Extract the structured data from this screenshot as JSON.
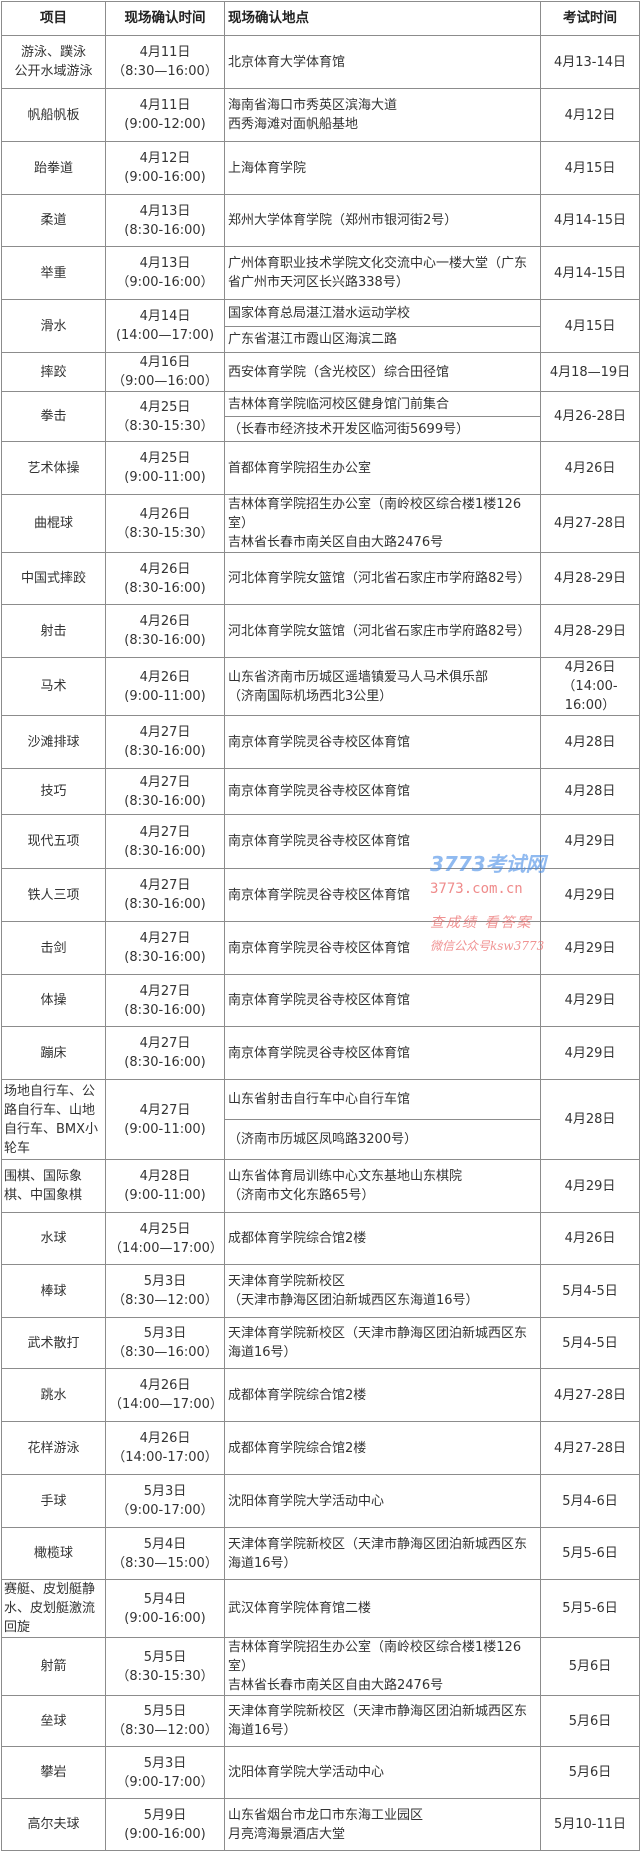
{
  "header": {
    "project": "项目",
    "confirm_time": "现场确认时间",
    "confirm_place": "现场确认地点",
    "exam_time": "考试时间"
  },
  "rows": [
    {
      "project": "游泳、蹼泳\n公开水域游泳",
      "date": "4月11日",
      "time": "（8:30—16:00）",
      "place": [
        "北京体育大学体育馆"
      ],
      "exam": "4月13-14日"
    },
    {
      "project": "帆船帆板",
      "date": "4月11日",
      "time": "(9:00-12:00)",
      "place": [
        "海南省海口市秀英区滨海大道\n西秀海滩对面帆船基地"
      ],
      "exam": "4月12日"
    },
    {
      "project": "跆拳道",
      "date": "4月12日",
      "time": "(9:00-16:00)",
      "place": [
        "上海体育学院"
      ],
      "exam": "4月15日"
    },
    {
      "project": "柔道",
      "date": "4月13日",
      "time": "(8:30-16:00)",
      "place": [
        "郑州大学体育学院（郑州市银河街2号）"
      ],
      "exam": "4月14-15日"
    },
    {
      "project": "举重",
      "date": "4月13日",
      "time": "（9:00-16:00）",
      "place": [
        "广州体育职业技术学院文化交流中心一楼大堂（广东省广州市天河区长兴路338号）"
      ],
      "exam": "4月14-15日"
    },
    {
      "project": "滑水",
      "date": "4月14日",
      "time": "(14:00—17:00)",
      "place": [
        "国家体育总局湛江潜水运动学校",
        "广东省湛江市霞山区海滨二路"
      ],
      "exam": "4月15日"
    },
    {
      "project": "摔跤",
      "date": "4月16日",
      "time": "（9:00—16:00）",
      "place": [
        "西安体育学院（含光校区）综合田径馆"
      ],
      "exam": "4月18—19日"
    },
    {
      "project": "拳击",
      "date": "4月25日",
      "time": "（8:30-15:30）",
      "place": [
        "吉林体育学院临河校区健身馆门前集合",
        "（长春市经济技术开发区临河街5699号）"
      ],
      "exam": "4月26-28日"
    },
    {
      "project": "艺术体操",
      "date": "4月25日",
      "time": "(9:00-11:00)",
      "place": [
        "首都体育学院招生办公室"
      ],
      "exam": "4月26日"
    },
    {
      "project": "曲棍球",
      "date": "4月26日",
      "time": "（8:30-15:30）",
      "place": [
        "吉林体育学院招生办公室（南岭校区综合楼1楼126室）\n吉林省长春市南关区自由大路2476号"
      ],
      "exam": "4月27-28日"
    },
    {
      "project": "中国式摔跤",
      "date": "4月26日",
      "time": "(8:30-16:00)",
      "place": [
        "河北体育学院女篮馆（河北省石家庄市学府路82号）"
      ],
      "exam": "4月28-29日"
    },
    {
      "project": "射击",
      "date": "4月26日",
      "time": "(8:30-16:00)",
      "place": [
        "河北体育学院女篮馆（河北省石家庄市学府路82号）"
      ],
      "exam": "4月28-29日"
    },
    {
      "project": "马术",
      "date": "4月26日",
      "time": "(9:00-11:00)",
      "place": [
        "山东省济南市历城区遥墙镇爱马人马术俱乐部\n（济南国际机场西北3公里）"
      ],
      "exam": "4月26日\n（14:00-16:00）"
    },
    {
      "project": "沙滩排球",
      "date": "4月27日",
      "time": "(8:30-16:00)",
      "place": [
        "南京体育学院灵谷寺校区体育馆"
      ],
      "exam": "4月28日"
    },
    {
      "project": "技巧",
      "date": "4月27日",
      "time": "(8:30-16:00)",
      "place": [
        "南京体育学院灵谷寺校区体育馆"
      ],
      "exam": "4月28日"
    },
    {
      "project": "现代五项",
      "date": "4月27日",
      "time": "(8:30-16:00)",
      "place": [
        "南京体育学院灵谷寺校区体育馆"
      ],
      "exam": "4月29日"
    },
    {
      "project": "铁人三项",
      "date": "4月27日",
      "time": "(8:30-16:00)",
      "place": [
        "南京体育学院灵谷寺校区体育馆"
      ],
      "exam": "4月29日"
    },
    {
      "project": "击剑",
      "date": "4月27日",
      "time": "(8:30-16:00)",
      "place": [
        "南京体育学院灵谷寺校区体育馆"
      ],
      "exam": "4月29日"
    },
    {
      "project": "体操",
      "date": "4月27日",
      "time": "(8:30-16:00)",
      "place": [
        "南京体育学院灵谷寺校区体育馆"
      ],
      "exam": "4月29日"
    },
    {
      "project": "蹦床",
      "date": "4月27日",
      "time": "(8:30-16:00)",
      "place": [
        "南京体育学院灵谷寺校区体育馆"
      ],
      "exam": "4月29日"
    },
    {
      "project": "场地自行车、公路自行车、山地自行车、BMX小轮车",
      "date": "4月27日",
      "time": "(9:00-11:00)",
      "place": [
        "山东省射击自行车中心自行车馆",
        "（济南市历城区凤鸣路3200号）"
      ],
      "exam": "4月28日"
    },
    {
      "project": "围棋、国际象棋、中国象棋",
      "date": "4月28日",
      "time": "(9:00-11:00)",
      "place": [
        "山东省体育局训练中心文东基地山东棋院\n（济南市文化东路65号）"
      ],
      "exam": "4月29日"
    },
    {
      "project": "水球",
      "date": "4月25日",
      "time": "（14:00—17:00）",
      "place": [
        "成都体育学院综合馆2楼"
      ],
      "exam": "4月26日"
    },
    {
      "project": "棒球",
      "date": "5月3日",
      "time": "（8:30—12:00）",
      "place": [
        "天津体育学院新校区\n（天津市静海区团泊新城西区东海道16号）"
      ],
      "exam": "5月4-5日"
    },
    {
      "project": "武术散打",
      "date": "5月3日",
      "time": "（8:30—16:00）",
      "place": [
        "天津体育学院新校区（天津市静海区团泊新城西区东海道16号）"
      ],
      "exam": "5月4-5日"
    },
    {
      "project": "跳水",
      "date": "4月26日",
      "time": "（14:00—17:00）",
      "place": [
        "成都体育学院综合馆2楼"
      ],
      "exam": "4月27-28日"
    },
    {
      "project": "花样游泳",
      "date": "4月26日",
      "time": "（14:00-17:00）",
      "place": [
        "成都体育学院综合馆2楼"
      ],
      "exam": "4月27-28日"
    },
    {
      "project": "手球",
      "date": "5月3日",
      "time": "（9:00-17:00）",
      "place": [
        "沈阳体育学院大学活动中心"
      ],
      "exam": "5月4-6日"
    },
    {
      "project": "橄榄球",
      "date": "5月4日",
      "time": "（8:30—15:00）",
      "place": [
        "天津体育学院新校区（天津市静海区团泊新城西区东海道16号）"
      ],
      "exam": "5月5-6日"
    },
    {
      "project": "赛艇、皮划艇静水、皮划艇激流回旋",
      "date": "5月4日",
      "time": "(9:00-16:00)",
      "place": [
        "武汉体育学院体育馆二楼"
      ],
      "exam": "5月5-6日"
    },
    {
      "project": "射箭",
      "date": "5月5日",
      "time": "（8:30-15:30）",
      "place": [
        "吉林体育学院招生办公室（南岭校区综合楼1楼126室）\n吉林省长春市南关区自由大路2476号"
      ],
      "exam": "5月6日"
    },
    {
      "project": "垒球",
      "date": "5月5日",
      "time": "（8:30—12:00）",
      "place": [
        "天津体育学院新校区（天津市静海区团泊新城西区东海道16号）"
      ],
      "exam": "5月6日"
    },
    {
      "project": "攀岩",
      "date": "5月3日",
      "time": "（9:00-17:00）",
      "place": [
        "沈阳体育学院大学活动中心"
      ],
      "exam": "5月6日"
    },
    {
      "project": "高尔夫球",
      "date": "5月9日",
      "time": "(9:00-16:00)",
      "place": [
        "山东省烟台市龙口市东海工业园区\n月亮湾海景酒店大堂"
      ],
      "exam": "5月10-11日"
    }
  ],
  "watermark": {
    "logo": "3773考试网",
    "url": "3773.com.cn",
    "slogan": "查成绩 看答案",
    "wechat": "微信公众号ksw3773"
  },
  "colors": {
    "border": "#8c8c8c",
    "text": "#333333",
    "watermark_blue": "#468ce6",
    "watermark_red": "#eb6e6e"
  }
}
